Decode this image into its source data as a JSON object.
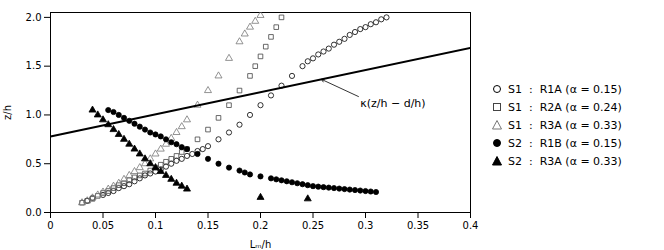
{
  "chart_data": {
    "type": "scatter",
    "xlabel": "Lₘ/h",
    "ylabel": "z/h",
    "xlim": [
      0,
      0.4
    ],
    "ylim": [
      0,
      2.05
    ],
    "xticks": [
      0,
      0.05,
      0.1,
      0.15,
      0.2,
      0.25,
      0.3,
      0.35,
      0.4
    ],
    "yticks": [
      {
        "value": 0,
        "label": "0.0"
      },
      0.5,
      {
        "value": 1.0,
        "label": "1.0"
      },
      1.5,
      {
        "value": 2.0,
        "label": "2.0"
      }
    ],
    "grid": false,
    "legend": "right",
    "series": [
      {
        "name": "S1  :  R1A (α = 0.15)",
        "type": "scatter",
        "color": "#000000",
        "marker": "open_circle",
        "x": [
          0.035,
          0.04,
          0.05,
          0.055,
          0.06,
          0.065,
          0.07,
          0.075,
          0.08,
          0.085,
          0.09,
          0.095,
          0.1,
          0.105,
          0.11,
          0.115,
          0.12,
          0.125,
          0.13,
          0.135,
          0.14,
          0.145,
          0.15,
          0.16,
          0.17,
          0.18,
          0.19,
          0.2,
          0.21,
          0.22,
          0.23,
          0.24,
          0.245,
          0.25,
          0.255,
          0.26,
          0.265,
          0.27,
          0.275,
          0.28,
          0.285,
          0.29,
          0.295,
          0.3,
          0.305,
          0.31,
          0.315,
          0.32
        ],
        "values": [
          0.12,
          0.15,
          0.18,
          0.2,
          0.22,
          0.25,
          0.27,
          0.29,
          0.32,
          0.35,
          0.38,
          0.4,
          0.42,
          0.44,
          0.47,
          0.5,
          0.53,
          0.55,
          0.58,
          0.6,
          0.63,
          0.65,
          0.68,
          0.75,
          0.82,
          0.9,
          1.0,
          1.1,
          1.2,
          1.3,
          1.4,
          1.5,
          1.55,
          1.58,
          1.62,
          1.65,
          1.68,
          1.72,
          1.75,
          1.78,
          1.82,
          1.85,
          1.88,
          1.9,
          1.93,
          1.95,
          1.98,
          2.0
        ]
      },
      {
        "name": "S1  :  R2A (α = 0.24)",
        "type": "scatter",
        "color": "#444444",
        "marker": "open_square",
        "x": [
          0.03,
          0.035,
          0.04,
          0.045,
          0.05,
          0.055,
          0.06,
          0.065,
          0.07,
          0.075,
          0.08,
          0.085,
          0.09,
          0.095,
          0.1,
          0.105,
          0.11,
          0.115,
          0.12,
          0.125,
          0.13,
          0.14,
          0.15,
          0.16,
          0.17,
          0.18,
          0.19,
          0.195,
          0.2,
          0.205,
          0.21,
          0.215,
          0.22
        ],
        "values": [
          0.1,
          0.12,
          0.14,
          0.17,
          0.2,
          0.22,
          0.25,
          0.28,
          0.3,
          0.33,
          0.36,
          0.38,
          0.4,
          0.43,
          0.46,
          0.49,
          0.52,
          0.55,
          0.58,
          0.62,
          0.65,
          0.75,
          0.85,
          0.97,
          1.1,
          1.25,
          1.4,
          1.5,
          1.6,
          1.7,
          1.8,
          1.9,
          2.0
        ]
      },
      {
        "name": "S1  :  R3A (α = 0.33)",
        "type": "scatter",
        "color": "#777777",
        "marker": "open_triangle",
        "x": [
          0.03,
          0.035,
          0.04,
          0.045,
          0.05,
          0.055,
          0.06,
          0.065,
          0.07,
          0.075,
          0.08,
          0.085,
          0.09,
          0.095,
          0.1,
          0.105,
          0.11,
          0.115,
          0.12,
          0.125,
          0.13,
          0.14,
          0.15,
          0.16,
          0.17,
          0.18,
          0.185,
          0.19,
          0.195,
          0.2
        ],
        "values": [
          0.1,
          0.12,
          0.15,
          0.18,
          0.21,
          0.24,
          0.27,
          0.3,
          0.34,
          0.38,
          0.42,
          0.46,
          0.5,
          0.55,
          0.6,
          0.65,
          0.7,
          0.76,
          0.82,
          0.88,
          0.95,
          1.1,
          1.25,
          1.4,
          1.58,
          1.75,
          1.83,
          1.9,
          1.96,
          2.02
        ]
      },
      {
        "name": "S2  :  R1B (α = 0.15)",
        "type": "scatter",
        "color": "#000000",
        "marker": "filled_circle",
        "x": [
          0.055,
          0.06,
          0.065,
          0.07,
          0.075,
          0.08,
          0.085,
          0.09,
          0.095,
          0.1,
          0.105,
          0.11,
          0.115,
          0.12,
          0.125,
          0.13,
          0.14,
          0.15,
          0.16,
          0.17,
          0.18,
          0.185,
          0.19,
          0.2,
          0.21,
          0.215,
          0.22,
          0.225,
          0.23,
          0.235,
          0.24,
          0.245,
          0.25,
          0.255,
          0.26,
          0.265,
          0.27,
          0.275,
          0.28,
          0.285,
          0.29,
          0.295,
          0.3,
          0.305,
          0.31
        ],
        "values": [
          1.05,
          1.03,
          1.0,
          0.97,
          0.94,
          0.91,
          0.88,
          0.85,
          0.82,
          0.8,
          0.78,
          0.75,
          0.72,
          0.7,
          0.67,
          0.65,
          0.6,
          0.55,
          0.5,
          0.46,
          0.43,
          0.41,
          0.39,
          0.37,
          0.35,
          0.34,
          0.33,
          0.32,
          0.31,
          0.3,
          0.29,
          0.28,
          0.27,
          0.265,
          0.26,
          0.255,
          0.25,
          0.245,
          0.24,
          0.235,
          0.23,
          0.225,
          0.22,
          0.215,
          0.21
        ]
      },
      {
        "name": "S2  :  R3A (α = 0.33)",
        "type": "scatter",
        "color": "#000000",
        "marker": "filled_triangle",
        "x": [
          0.04,
          0.045,
          0.05,
          0.055,
          0.06,
          0.065,
          0.07,
          0.075,
          0.08,
          0.085,
          0.09,
          0.095,
          0.1,
          0.105,
          0.11,
          0.115,
          0.12,
          0.125,
          0.13,
          0.2,
          0.245
        ],
        "values": [
          1.05,
          1.0,
          0.95,
          0.9,
          0.85,
          0.8,
          0.75,
          0.7,
          0.65,
          0.6,
          0.55,
          0.5,
          0.46,
          0.42,
          0.38,
          0.34,
          0.3,
          0.27,
          0.24,
          0.155,
          0.14
        ]
      },
      {
        "type": "line",
        "color": "#000000",
        "line_style": "solid",
        "x": [
          0.0,
          0.4
        ],
        "values": [
          0.78,
          1.688
        ]
      }
    ],
    "annotations": [
      {
        "text": "κ(z/h − d/h)",
        "x": 0.258,
        "y": 1.365,
        "text_x": 0.295,
        "text_y": 1.18
      }
    ]
  }
}
